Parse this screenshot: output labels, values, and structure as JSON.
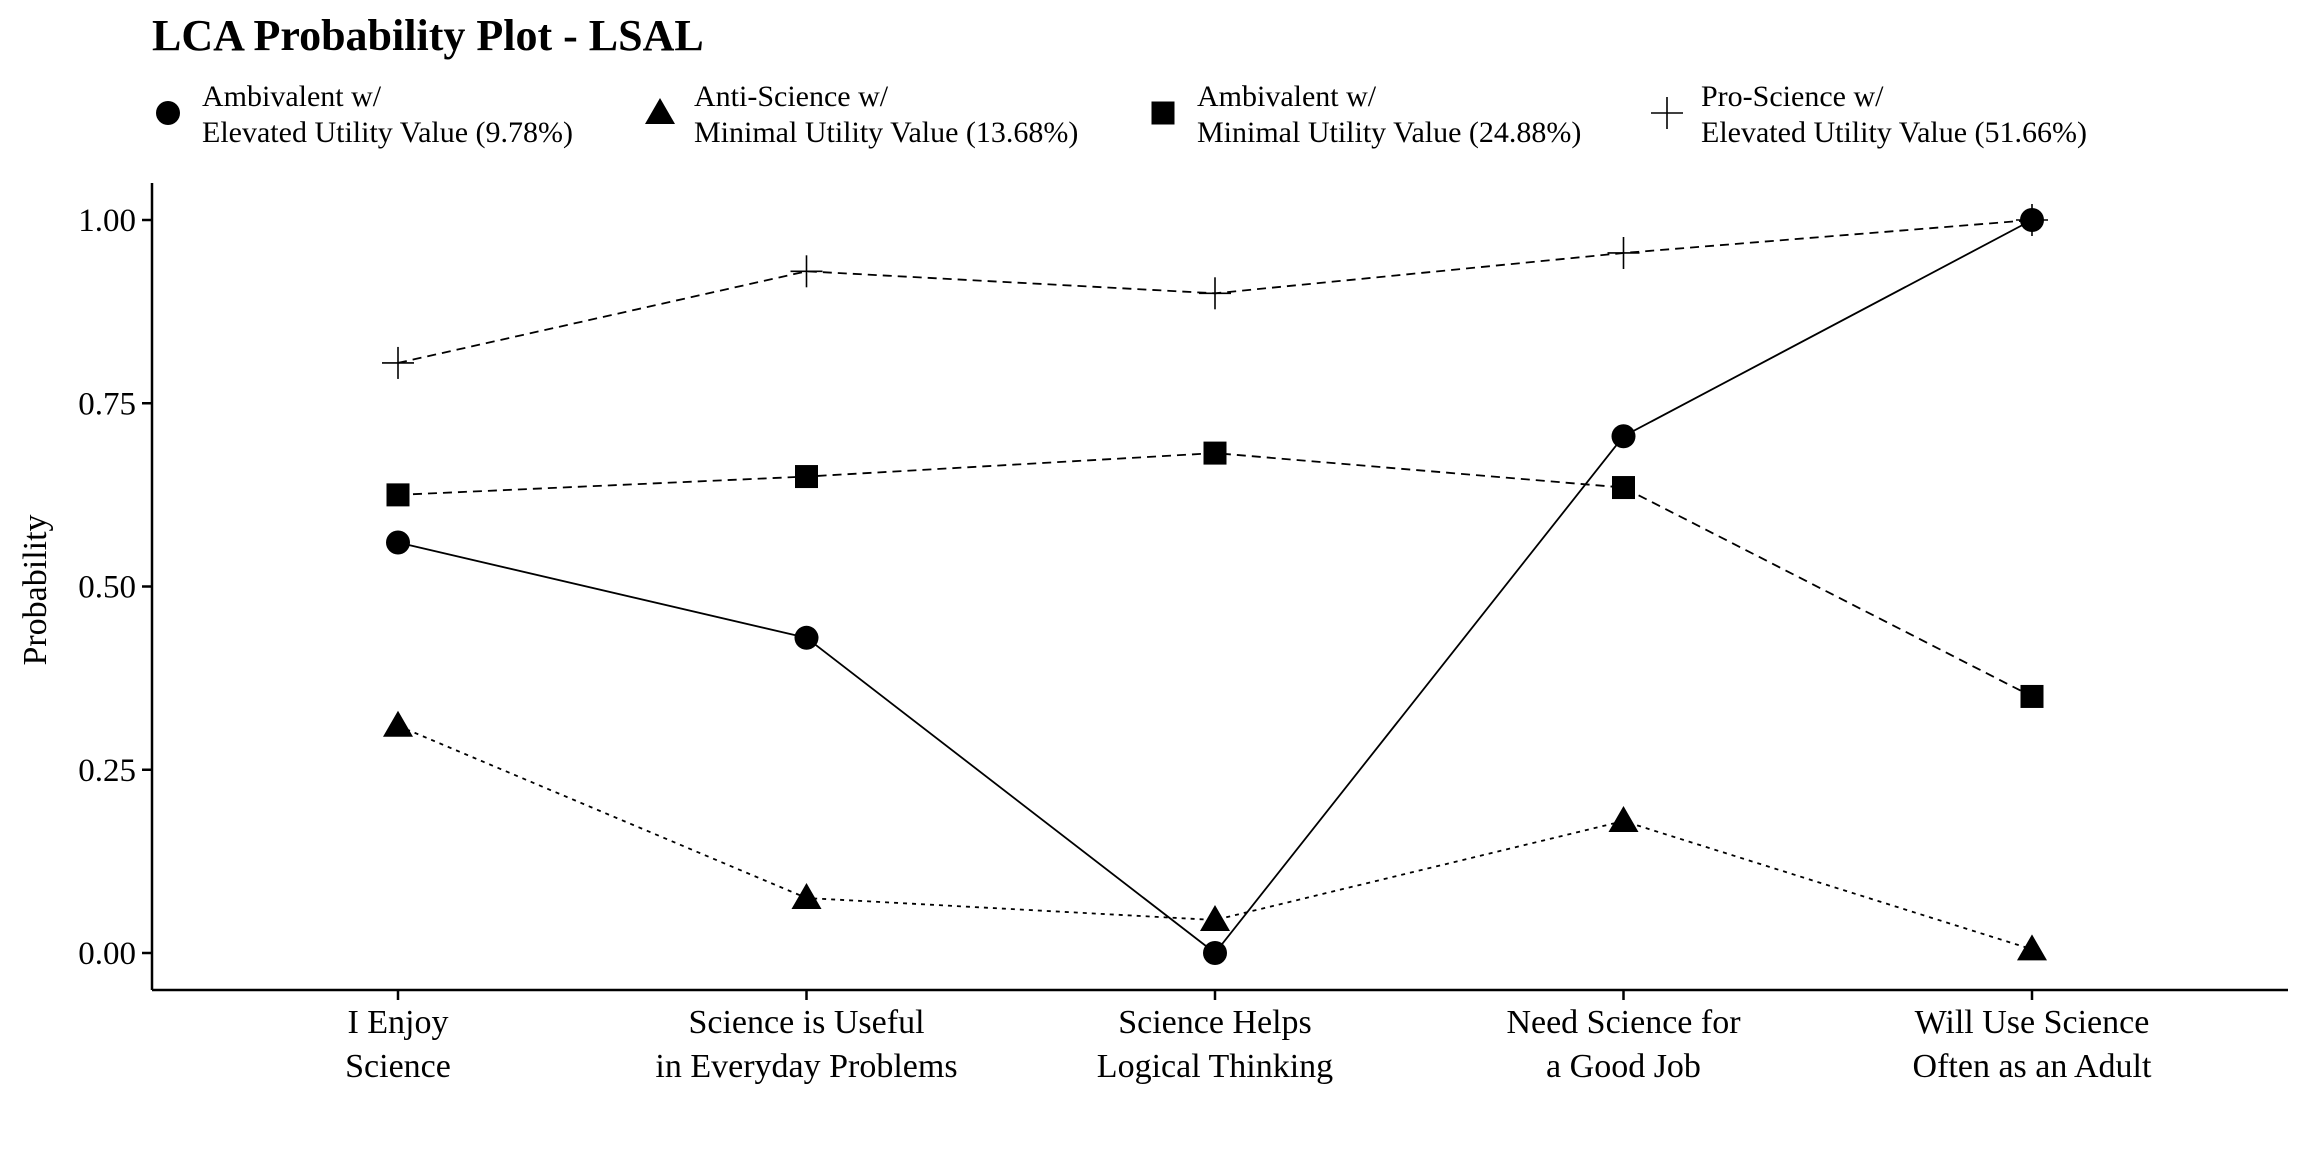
{
  "chart_data": {
    "type": "line",
    "title": "LCA Probability Plot - LSAL",
    "ylabel": "Probability",
    "xlabel": "",
    "ylim": [
      0,
      1
    ],
    "yticks": [
      "0.00",
      "0.25",
      "0.50",
      "0.75",
      "1.00"
    ],
    "ytick_values": [
      0,
      0.25,
      0.5,
      0.75,
      1
    ],
    "categories": [
      [
        "I Enjoy",
        "Science"
      ],
      [
        "Science is Useful",
        "in Everyday Problems"
      ],
      [
        "Science Helps",
        "Logical Thinking"
      ],
      [
        "Need Science for",
        "a Good Job"
      ],
      [
        "Will Use Science",
        "Often as an Adult"
      ]
    ],
    "legend_position": "top",
    "grid": false,
    "series": [
      {
        "name": [
          "Ambivalent w/",
          "Elevated Utility Value (9.78%)"
        ],
        "marker": "circle",
        "line": "solid",
        "values": [
          0.56,
          0.43,
          0.0,
          0.705,
          1.0
        ]
      },
      {
        "name": [
          "Anti-Science w/",
          "Minimal Utility Value (13.68%)"
        ],
        "marker": "triangle",
        "line": "dotted",
        "values": [
          0.31,
          0.075,
          0.045,
          0.18,
          0.005
        ]
      },
      {
        "name": [
          "Ambivalent w/",
          "Minimal Utility Value (24.88%)"
        ],
        "marker": "square",
        "line": "dashed",
        "values": [
          0.625,
          0.65,
          0.682,
          0.635,
          0.35
        ]
      },
      {
        "name": [
          "Pro-Science w/",
          "Elevated Utility Value (51.66%)"
        ],
        "marker": "cross",
        "line": "dashed",
        "values": [
          0.805,
          0.93,
          0.9,
          0.955,
          1.0
        ]
      }
    ]
  }
}
